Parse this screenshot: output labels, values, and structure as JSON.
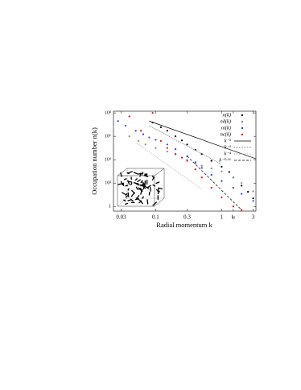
{
  "chart_data": {
    "type": "scatter",
    "log_x": true,
    "log_y": true,
    "xlabel": "Radial momentum k",
    "ylabel": "Occupation number n(k)",
    "xlim": [
      0.023,
      3.3
    ],
    "ylim": [
      0.4,
      140000000
    ],
    "xticks": [
      0.03,
      0.1,
      0.3,
      1,
      {
        "value": 1.5,
        "label": "kₗ"
      },
      3
    ],
    "yticks": [
      1,
      {
        "value": 100,
        "label": "10²"
      },
      {
        "value": 10000,
        "label": "10⁴"
      },
      {
        "value": 1000000,
        "label": "10⁶"
      },
      {
        "value": 100000000,
        "label": "10⁸"
      }
    ],
    "legend": "upper right",
    "series": [
      {
        "name": "n(k)",
        "color": "#000000",
        "kind": "points",
        "x": [
          0.09,
          0.12,
          0.15,
          0.2,
          0.25,
          0.3,
          0.4,
          0.5,
          0.7,
          1,
          1.3,
          1.5,
          2,
          2.5,
          3
        ],
        "values": [
          15000000,
          6000000,
          3000000,
          1000000,
          450000,
          200000,
          70000,
          30000,
          8000,
          2500,
          900,
          300,
          60,
          18,
          5
        ]
      },
      {
        "name": "nδ(k)",
        "color": "#888888",
        "kind": "points",
        "x": [
          0.04,
          0.055,
          0.07,
          0.1,
          0.15,
          0.2,
          0.3,
          0.4,
          0.5,
          0.7,
          1,
          1.5,
          2,
          3
        ],
        "values": [
          1000000,
          400000,
          200000,
          100000,
          50000,
          30000,
          10000,
          5000,
          3000,
          1800,
          1000,
          300,
          100,
          20
        ]
      },
      {
        "name": "ni(k)",
        "color": "#1f3fff",
        "kind": "points",
        "x": [
          0.027,
          0.035,
          0.05,
          0.065,
          0.08,
          0.1,
          0.15,
          0.2,
          0.3,
          0.4,
          0.5,
          0.7,
          1,
          1.5,
          2,
          3
        ],
        "values": [
          20000000,
          8000000,
          3000000,
          1500000,
          800000,
          500000,
          200000,
          80000,
          20000,
          6000,
          2000,
          500,
          150,
          40,
          12,
          3
        ]
      },
      {
        "name": "nc(k)",
        "color": "#e01010",
        "kind": "points",
        "x": [
          0.04,
          0.06,
          0.09,
          0.12,
          0.15,
          0.2,
          0.25,
          0.3,
          0.4,
          0.5,
          0.7,
          1,
          1.5,
          2
        ],
        "values": [
          50000000,
          3000000,
          100000000,
          400000,
          100000,
          30000,
          15000,
          8000,
          1500,
          300,
          40,
          6,
          1,
          0.5
        ]
      },
      {
        "name": "k⁻²",
        "color": "#000000",
        "kind": "line",
        "dash": "none",
        "x": [
          0.08,
          3.3
        ],
        "values": [
          20000000,
          12000
        ]
      },
      {
        "name": "k⁻³",
        "color": "#555555",
        "kind": "line",
        "dash": "1,1",
        "x": [
          0.08,
          1
        ],
        "values": [
          8000000,
          4000
        ]
      },
      {
        "name": "k⁻⁴",
        "color": "#aaaaaa",
        "kind": "line",
        "dash": "1,1",
        "x": [
          0.05,
          0.5
        ],
        "values": [
          300000,
          30
        ]
      },
      {
        "name": "k⁻⁵·⁶⁶",
        "color": "#000000",
        "kind": "line",
        "dash": "3,2",
        "x": [
          0.3,
          2
        ],
        "values": [
          20000,
          0.5
        ]
      }
    ]
  }
}
